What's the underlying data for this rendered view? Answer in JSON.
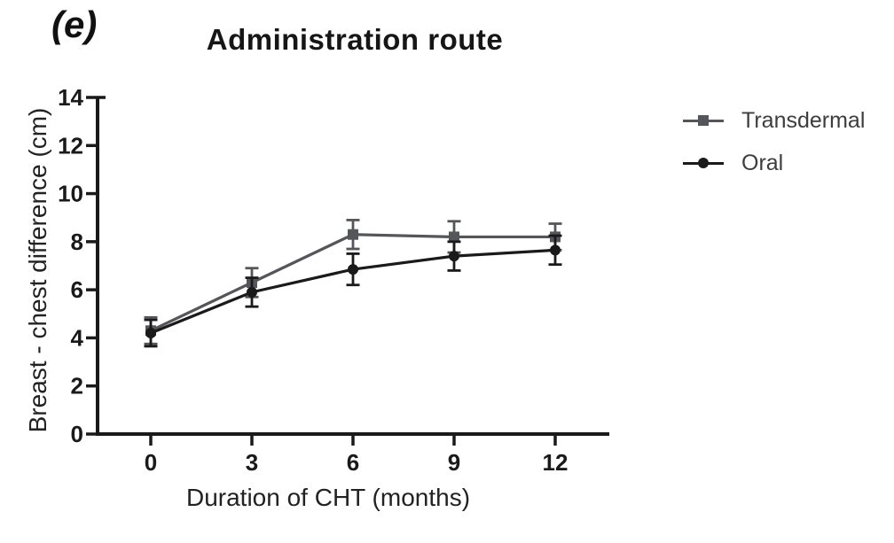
{
  "panel_label": "(e)",
  "title": "Administration route",
  "colors": {
    "axis": "#1a1a1a",
    "tick_text": "#1a1a1a",
    "transdermal_gray": "#55565a",
    "oral_black": "#1a1a1a",
    "legend_text": "#3d3d3d"
  },
  "chart_data": {
    "type": "line",
    "title": "Administration route",
    "xlabel": "Duration of CHT (months)",
    "ylabel": "Breast - chest difference (cm)",
    "x": [
      0,
      3,
      6,
      9,
      12
    ],
    "xticks": [
      "0",
      "3",
      "6",
      "9",
      "12"
    ],
    "yticks": [
      "0",
      "2",
      "4",
      "6",
      "8",
      "10",
      "12",
      "14"
    ],
    "xlim": [
      0,
      12
    ],
    "ylim": [
      0,
      14
    ],
    "grid": false,
    "legend_position": "right-of-plot",
    "error_bars": true,
    "series": [
      {
        "name": "Transdermal",
        "marker": "square",
        "color": "#55565a",
        "values": [
          4.3,
          6.3,
          8.3,
          8.2,
          8.2
        ],
        "errors": [
          0.55,
          0.6,
          0.6,
          0.65,
          0.55
        ]
      },
      {
        "name": "Oral",
        "marker": "circle",
        "color": "#1a1a1a",
        "values": [
          4.2,
          5.9,
          6.85,
          7.4,
          7.65
        ],
        "errors": [
          0.55,
          0.6,
          0.65,
          0.6,
          0.6
        ]
      }
    ]
  }
}
